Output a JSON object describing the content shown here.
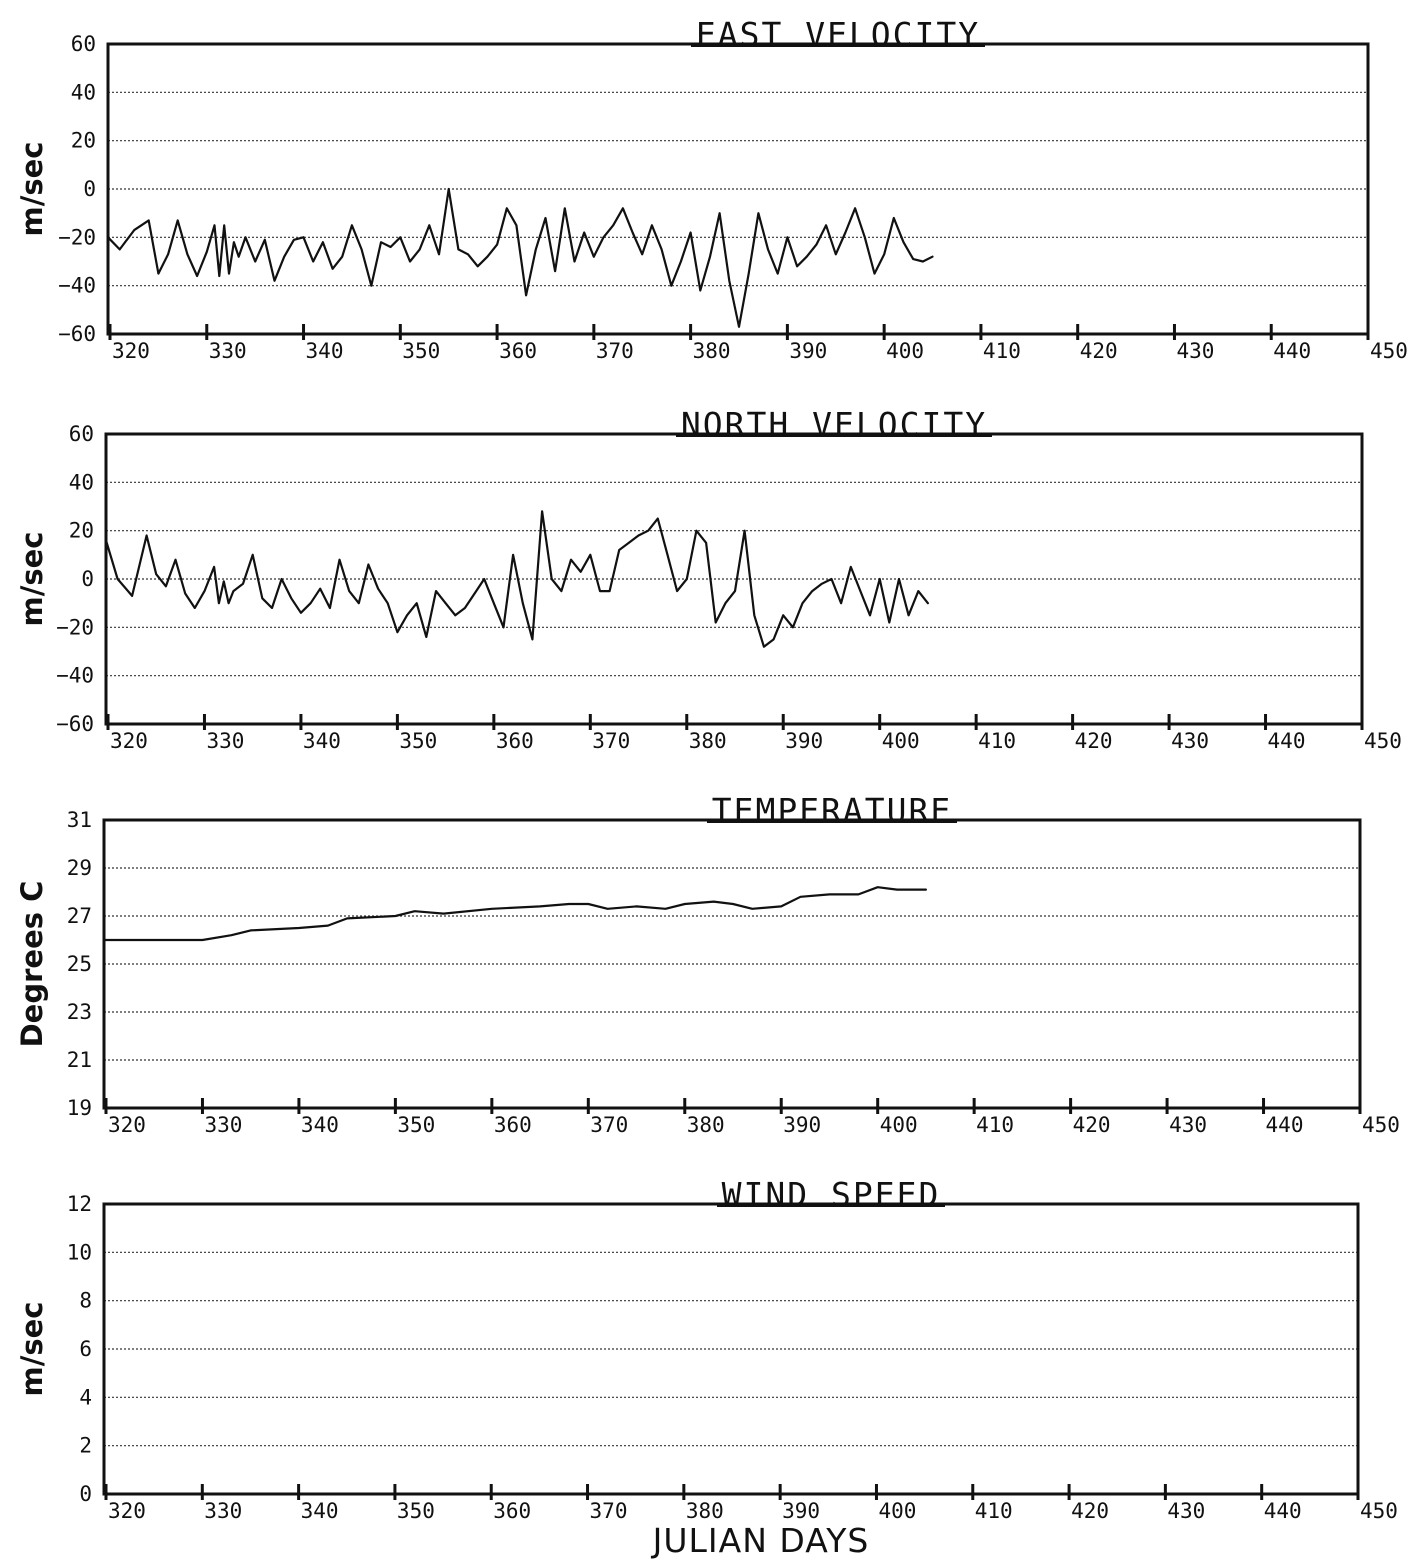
{
  "chart_data": [
    {
      "type": "line",
      "title": "EAST VELOCITY",
      "ylabel": "m/sec",
      "xlabel": "",
      "xlim": [
        320,
        450
      ],
      "ylim": [
        -60,
        60
      ],
      "xticks": [
        320,
        330,
        340,
        350,
        360,
        370,
        380,
        390,
        400,
        410,
        420,
        430,
        440,
        450
      ],
      "yticks": [
        60,
        40,
        20,
        0,
        -20,
        -40,
        -60
      ],
      "grid": true,
      "series": [
        {
          "x": [
            318,
            319.5,
            321,
            322.5,
            324,
            325,
            326,
            327,
            328,
            329,
            330,
            330.8,
            331.3,
            331.8,
            332.3,
            332.8,
            333.3,
            334,
            335,
            336,
            337,
            338,
            339,
            340,
            341,
            342,
            343,
            344,
            345,
            346,
            347,
            348,
            349,
            350,
            351,
            352,
            353,
            354,
            355,
            356,
            357,
            358,
            359,
            360,
            361,
            362,
            363,
            364,
            365,
            366,
            367,
            368,
            369,
            370,
            371,
            372,
            373,
            374,
            375,
            376,
            377,
            378,
            379,
            380,
            381,
            382,
            383,
            384,
            385,
            386,
            387,
            388,
            389,
            390,
            391,
            392,
            393,
            394,
            395,
            396,
            397,
            398,
            399,
            400,
            401,
            402,
            403,
            404,
            405
          ],
          "y": [
            -15,
            -20,
            -25,
            -17,
            -13,
            -35,
            -27,
            -13,
            -27,
            -36,
            -26,
            -15,
            -36,
            -15,
            -35,
            -22,
            -28,
            -20,
            -30,
            -21,
            -38,
            -28,
            -21,
            -20,
            -30,
            -22,
            -33,
            -28,
            -15,
            -25,
            -40,
            -22,
            -24,
            -20,
            -30,
            -25,
            -15,
            -27,
            0,
            -25,
            -27,
            -32,
            -28,
            -23,
            -8,
            -15,
            -44,
            -25,
            -12,
            -34,
            -8,
            -30,
            -18,
            -28,
            -20,
            -15,
            -8,
            -18,
            -27,
            -15,
            -25,
            -40,
            -30,
            -18,
            -42,
            -28,
            -10,
            -38,
            -57,
            -35,
            -10,
            -25,
            -35,
            -20,
            -32,
            -28,
            -23,
            -15,
            -27,
            -18,
            -8,
            -20,
            -35,
            -27,
            -12,
            -22,
            -29,
            -30,
            -28
          ]
        }
      ]
    },
    {
      "type": "line",
      "title": "NORTH VELOCITY",
      "ylabel": "m/sec",
      "xlabel": "",
      "xlim": [
        320,
        450
      ],
      "ylim": [
        -60,
        60
      ],
      "xticks": [
        320,
        330,
        340,
        350,
        360,
        370,
        380,
        390,
        400,
        410,
        420,
        430,
        440,
        450
      ],
      "yticks": [
        60,
        40,
        20,
        0,
        -20,
        -40,
        -60
      ],
      "grid": true,
      "series": [
        {
          "x": [
            318,
            319.5,
            321,
            322.5,
            324,
            325,
            326,
            327,
            328,
            329,
            330,
            331,
            331.5,
            332,
            332.5,
            333,
            334,
            335,
            336,
            337,
            338,
            339,
            340,
            341,
            342,
            343,
            344,
            345,
            346,
            347,
            348,
            349,
            350,
            351,
            352,
            353,
            354,
            355,
            356,
            357,
            358,
            359,
            360,
            361,
            362,
            363,
            364,
            365,
            366,
            367,
            368,
            369,
            370,
            371,
            372,
            373,
            374,
            375,
            376,
            377,
            378,
            379,
            380,
            381,
            382,
            383,
            384,
            385,
            386,
            387,
            388,
            389,
            390,
            391,
            392,
            393,
            394,
            395,
            396,
            397,
            398,
            399,
            400,
            401,
            402,
            403,
            404,
            405
          ],
          "y": [
            12,
            16,
            0,
            -7,
            18,
            2,
            -3,
            8,
            -6,
            -12,
            -5,
            5,
            -10,
            -1,
            -10,
            -5,
            -2,
            10,
            -8,
            -12,
            0,
            -8,
            -14,
            -10,
            -4,
            -12,
            8,
            -5,
            -10,
            6,
            -4,
            -10,
            -22,
            -15,
            -10,
            -24,
            -5,
            -10,
            -15,
            -12,
            -6,
            0,
            -10,
            -20,
            10,
            -10,
            -25,
            28,
            0,
            -5,
            8,
            3,
            10,
            -5,
            -5,
            12,
            15,
            18,
            20,
            25,
            10,
            -5,
            0,
            20,
            15,
            -18,
            -10,
            -5,
            20,
            -15,
            -28,
            -25,
            -15,
            -20,
            -10,
            -5,
            -2,
            0,
            -10,
            5,
            -5,
            -15,
            0,
            -18,
            0,
            -15,
            -5,
            -10
          ]
        }
      ]
    },
    {
      "type": "line",
      "title": "TEMPERATURE",
      "ylabel": "Degrees C",
      "xlabel": "",
      "xlim": [
        320,
        450
      ],
      "ylim": [
        19,
        31
      ],
      "xticks": [
        320,
        330,
        340,
        350,
        360,
        370,
        380,
        390,
        400,
        410,
        420,
        430,
        440,
        450
      ],
      "yticks": [
        31,
        29,
        27,
        25,
        23,
        21,
        19
      ],
      "grid": true,
      "series": [
        {
          "x": [
            318,
            320,
            325,
            330,
            333,
            335,
            340,
            343,
            345,
            350,
            352,
            355,
            360,
            365,
            368,
            370,
            372,
            375,
            378,
            380,
            383,
            385,
            387,
            390,
            392,
            395,
            398,
            400,
            402,
            405
          ],
          "y": [
            26.0,
            26.0,
            26.0,
            26.0,
            26.2,
            26.4,
            26.5,
            26.6,
            26.9,
            27.0,
            27.2,
            27.1,
            27.3,
            27.4,
            27.5,
            27.5,
            27.3,
            27.4,
            27.3,
            27.5,
            27.6,
            27.5,
            27.3,
            27.4,
            27.8,
            27.9,
            27.9,
            28.2,
            28.1,
            28.1
          ]
        }
      ]
    },
    {
      "type": "line",
      "title": "WIND SPEED",
      "ylabel": "m/sec",
      "xlabel": "JULIAN DAYS",
      "xlim": [
        320,
        450
      ],
      "ylim": [
        0,
        12
      ],
      "xticks": [
        320,
        330,
        340,
        350,
        360,
        370,
        380,
        390,
        400,
        410,
        420,
        430,
        440,
        450
      ],
      "yticks": [
        12,
        10,
        8,
        6,
        4,
        2,
        0
      ],
      "grid": true,
      "series": []
    }
  ]
}
